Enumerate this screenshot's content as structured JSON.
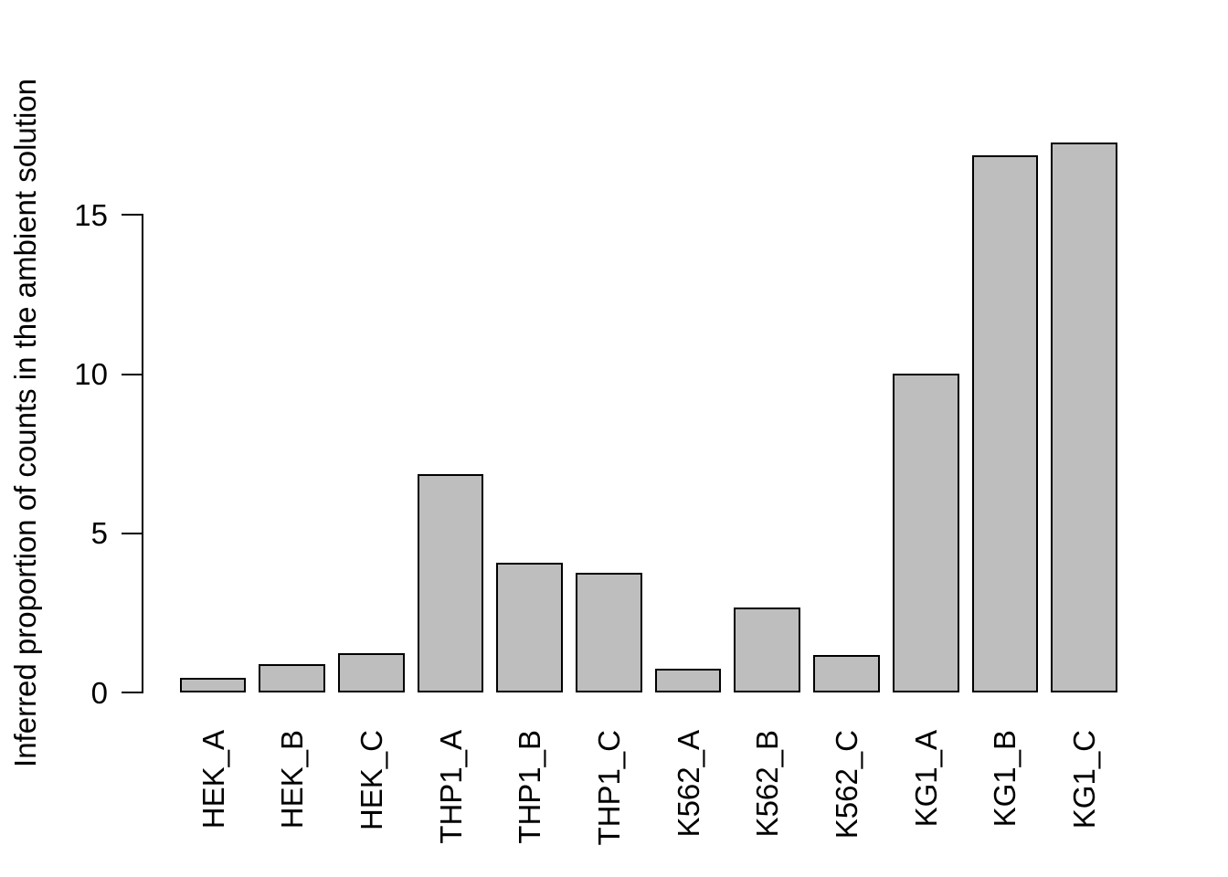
{
  "figure": {
    "background_color": "#ffffff",
    "text_color": "#000000"
  },
  "chart_data": {
    "type": "bar",
    "title": "",
    "xlabel": "",
    "ylabel": "Inferred proportion of counts in the ambient solution",
    "categories": [
      "HEK_A",
      "HEK_B",
      "HEK_C",
      "THP1_A",
      "THP1_B",
      "THP1_C",
      "K562_A",
      "K562_B",
      "K562_C",
      "KG1_A",
      "KG1_B",
      "KG1_C"
    ],
    "values": [
      0.45,
      0.9,
      1.24,
      6.86,
      4.07,
      3.75,
      0.74,
      2.68,
      1.17,
      10.02,
      16.88,
      17.28
    ],
    "yticks": [
      0,
      5,
      10,
      15
    ],
    "ytick_labels": [
      "0",
      "5",
      "10",
      "15"
    ],
    "ylim": [
      0,
      17.6
    ],
    "grid": false,
    "legend_position": "none",
    "bar_fill_color": "#bebebe",
    "bar_border_color": "#000000",
    "axis_color": "#000000"
  }
}
